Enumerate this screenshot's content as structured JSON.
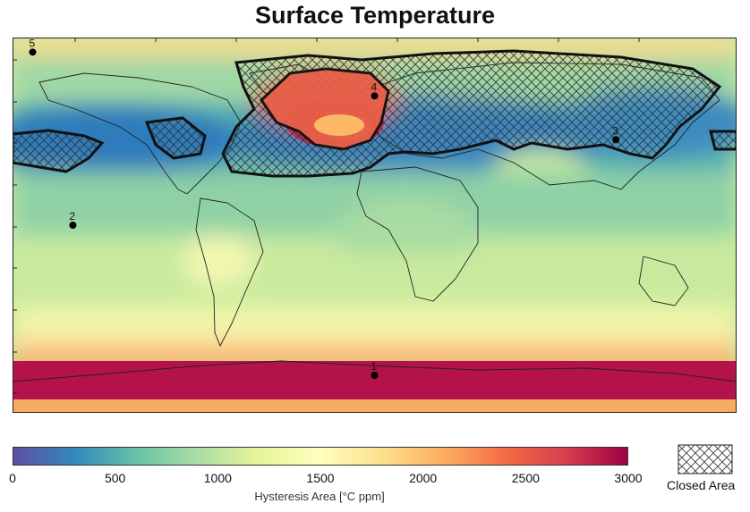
{
  "title": "Surface Temperature",
  "colorbar": {
    "label": "Hysteresis Area [°C ppm]",
    "ticks": [
      "0",
      "500",
      "1000",
      "1500",
      "2000",
      "2500",
      "3000"
    ],
    "stops": [
      "#5e4fa2",
      "#3288bd",
      "#66c2a5",
      "#abdda4",
      "#e6f598",
      "#ffffbf",
      "#fee08b",
      "#fdae61",
      "#f46d43",
      "#d53e4f",
      "#9e0142"
    ]
  },
  "legend": {
    "label": "Closed Area"
  },
  "markers": [
    {
      "label": "1",
      "lon": 0,
      "lat": -72
    },
    {
      "label": "2",
      "lon": -150,
      "lat": 0
    },
    {
      "label": "3",
      "lon": 120,
      "lat": 41
    },
    {
      "label": "4",
      "lon": 0,
      "lat": 62
    },
    {
      "label": "5",
      "lon": -170,
      "lat": 83
    }
  ]
}
